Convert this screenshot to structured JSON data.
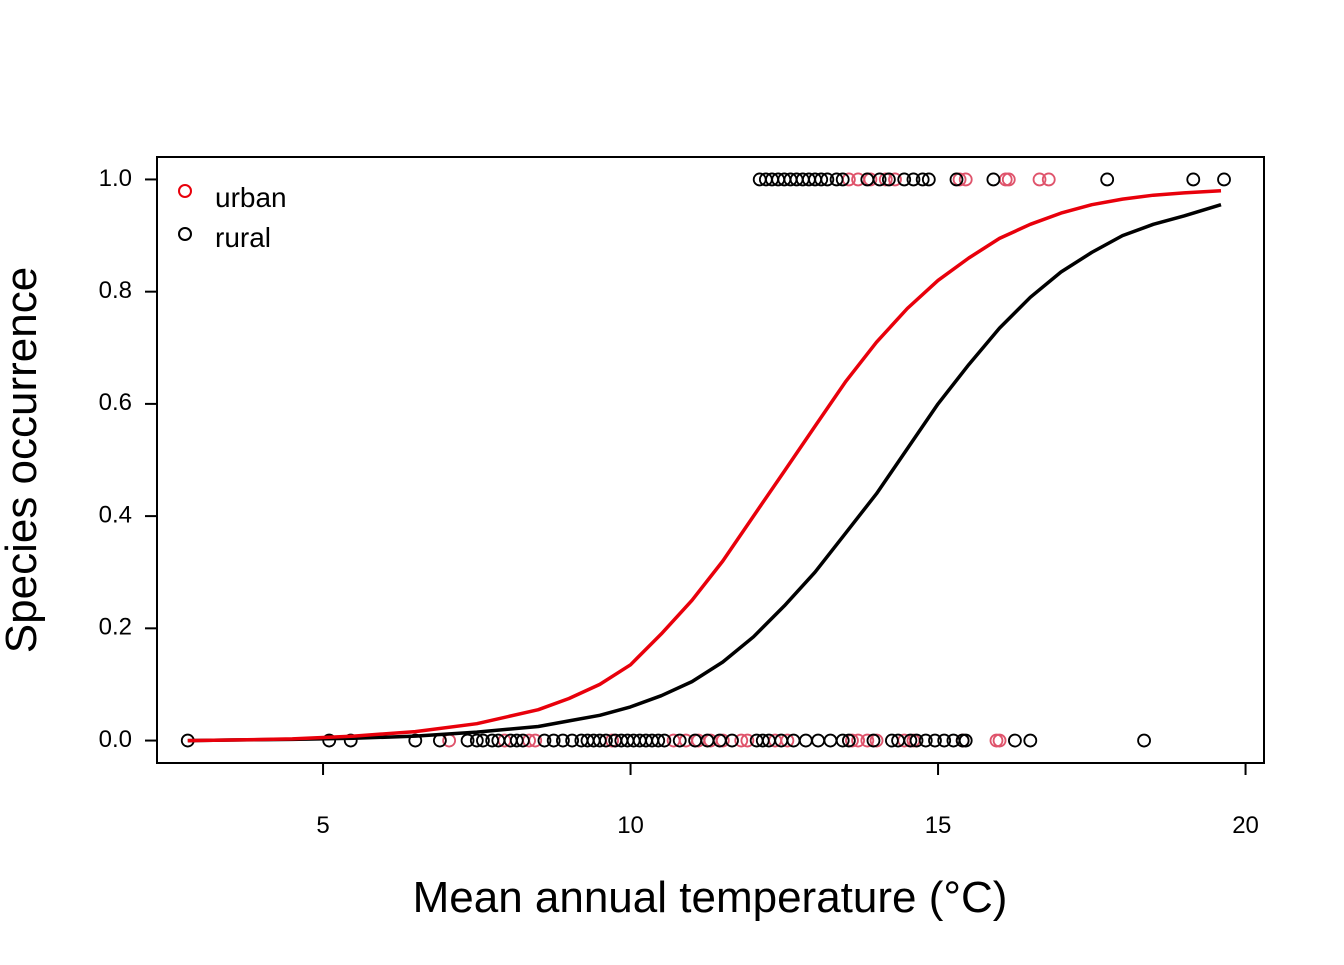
{
  "chart_data": {
    "type": "scatter",
    "title": "",
    "xlabel": "Mean annual temperature (°C)",
    "ylabel": "Species occurrence",
    "xlim": [
      2.3,
      20.3
    ],
    "ylim": [
      -0.04,
      1.04
    ],
    "x_ticks": [
      {
        "value": 5,
        "label": "5"
      },
      {
        "value": 10,
        "label": "10"
      },
      {
        "value": 15,
        "label": "15"
      },
      {
        "value": 20,
        "label": "20"
      }
    ],
    "y_ticks": [
      {
        "value": 0.0,
        "label": "0.0"
      },
      {
        "value": 0.2,
        "label": "0.2"
      },
      {
        "value": 0.4,
        "label": "0.4"
      },
      {
        "value": 0.6,
        "label": "0.6"
      },
      {
        "value": 0.8,
        "label": "0.8"
      },
      {
        "value": 1.0,
        "label": "1.0"
      }
    ],
    "grid": false,
    "legend_position": "top-left",
    "legend": [
      {
        "label": "urban",
        "color": "#e8000b"
      },
      {
        "label": "rural",
        "color": "#000000"
      }
    ],
    "points": [
      {
        "name": "urban",
        "color": "#df536b",
        "x1": [
          13.55,
          13.7,
          13.9,
          14.15,
          14.3,
          15.35,
          15.45,
          16.1,
          16.15,
          16.65,
          16.8
        ],
        "x0": [
          7.05,
          7.95,
          8.35,
          8.45,
          9.7,
          10.7,
          10.9,
          11.1,
          11.3,
          11.5,
          11.8,
          11.9,
          12.35,
          12.55,
          13.6,
          13.7,
          13.85,
          14.0,
          14.45,
          14.6,
          15.4,
          15.95,
          16.0
        ]
      },
      {
        "name": "rural",
        "color": "#000000",
        "x1": [
          12.1,
          12.2,
          12.3,
          12.4,
          12.5,
          12.6,
          12.7,
          12.8,
          12.9,
          13.0,
          13.1,
          13.2,
          13.35,
          13.45,
          13.85,
          14.05,
          14.2,
          14.45,
          14.6,
          14.75,
          14.85,
          15.3,
          15.9,
          17.75,
          19.15,
          19.65
        ],
        "x0": [
          2.8,
          5.1,
          5.45,
          6.5,
          6.9,
          7.35,
          7.5,
          7.6,
          7.75,
          7.85,
          8.05,
          8.15,
          8.25,
          8.6,
          8.75,
          8.9,
          9.05,
          9.2,
          9.3,
          9.4,
          9.5,
          9.6,
          9.75,
          9.85,
          9.95,
          10.05,
          10.15,
          10.25,
          10.35,
          10.45,
          10.55,
          10.8,
          11.05,
          11.25,
          11.45,
          11.65,
          12.05,
          12.15,
          12.25,
          12.45,
          12.65,
          12.85,
          13.05,
          13.25,
          13.45,
          13.55,
          13.95,
          14.25,
          14.35,
          14.55,
          14.65,
          14.8,
          14.95,
          15.1,
          15.25,
          15.4,
          15.45,
          16.25,
          16.5,
          18.35
        ]
      }
    ],
    "series": [
      {
        "name": "urban",
        "color": "#e8000b",
        "x": [
          2.8,
          3.5,
          4.5,
          5.5,
          6.5,
          7.5,
          8.5,
          9.0,
          9.5,
          10.0,
          10.5,
          11.0,
          11.5,
          12.0,
          12.5,
          13.0,
          13.5,
          14.0,
          14.5,
          15.0,
          15.5,
          16.0,
          16.5,
          17.0,
          17.5,
          18.0,
          18.5,
          19.0,
          19.6
        ],
        "y": [
          0.0,
          0.001,
          0.003,
          0.008,
          0.016,
          0.03,
          0.055,
          0.075,
          0.1,
          0.135,
          0.19,
          0.25,
          0.32,
          0.4,
          0.48,
          0.56,
          0.64,
          0.71,
          0.77,
          0.82,
          0.86,
          0.895,
          0.92,
          0.94,
          0.955,
          0.965,
          0.972,
          0.976,
          0.98
        ]
      },
      {
        "name": "rural",
        "color": "#000000",
        "x": [
          2.8,
          3.5,
          4.5,
          5.5,
          6.5,
          7.5,
          8.5,
          9.0,
          9.5,
          10.0,
          10.5,
          11.0,
          11.5,
          12.0,
          12.5,
          13.0,
          13.5,
          14.0,
          14.5,
          15.0,
          15.5,
          16.0,
          16.5,
          17.0,
          17.5,
          18.0,
          18.5,
          19.0,
          19.6
        ],
        "y": [
          0.0,
          0.001,
          0.002,
          0.004,
          0.008,
          0.015,
          0.025,
          0.035,
          0.045,
          0.06,
          0.08,
          0.105,
          0.14,
          0.185,
          0.24,
          0.3,
          0.37,
          0.44,
          0.52,
          0.6,
          0.67,
          0.735,
          0.79,
          0.835,
          0.87,
          0.9,
          0.92,
          0.935,
          0.955
        ]
      }
    ]
  }
}
